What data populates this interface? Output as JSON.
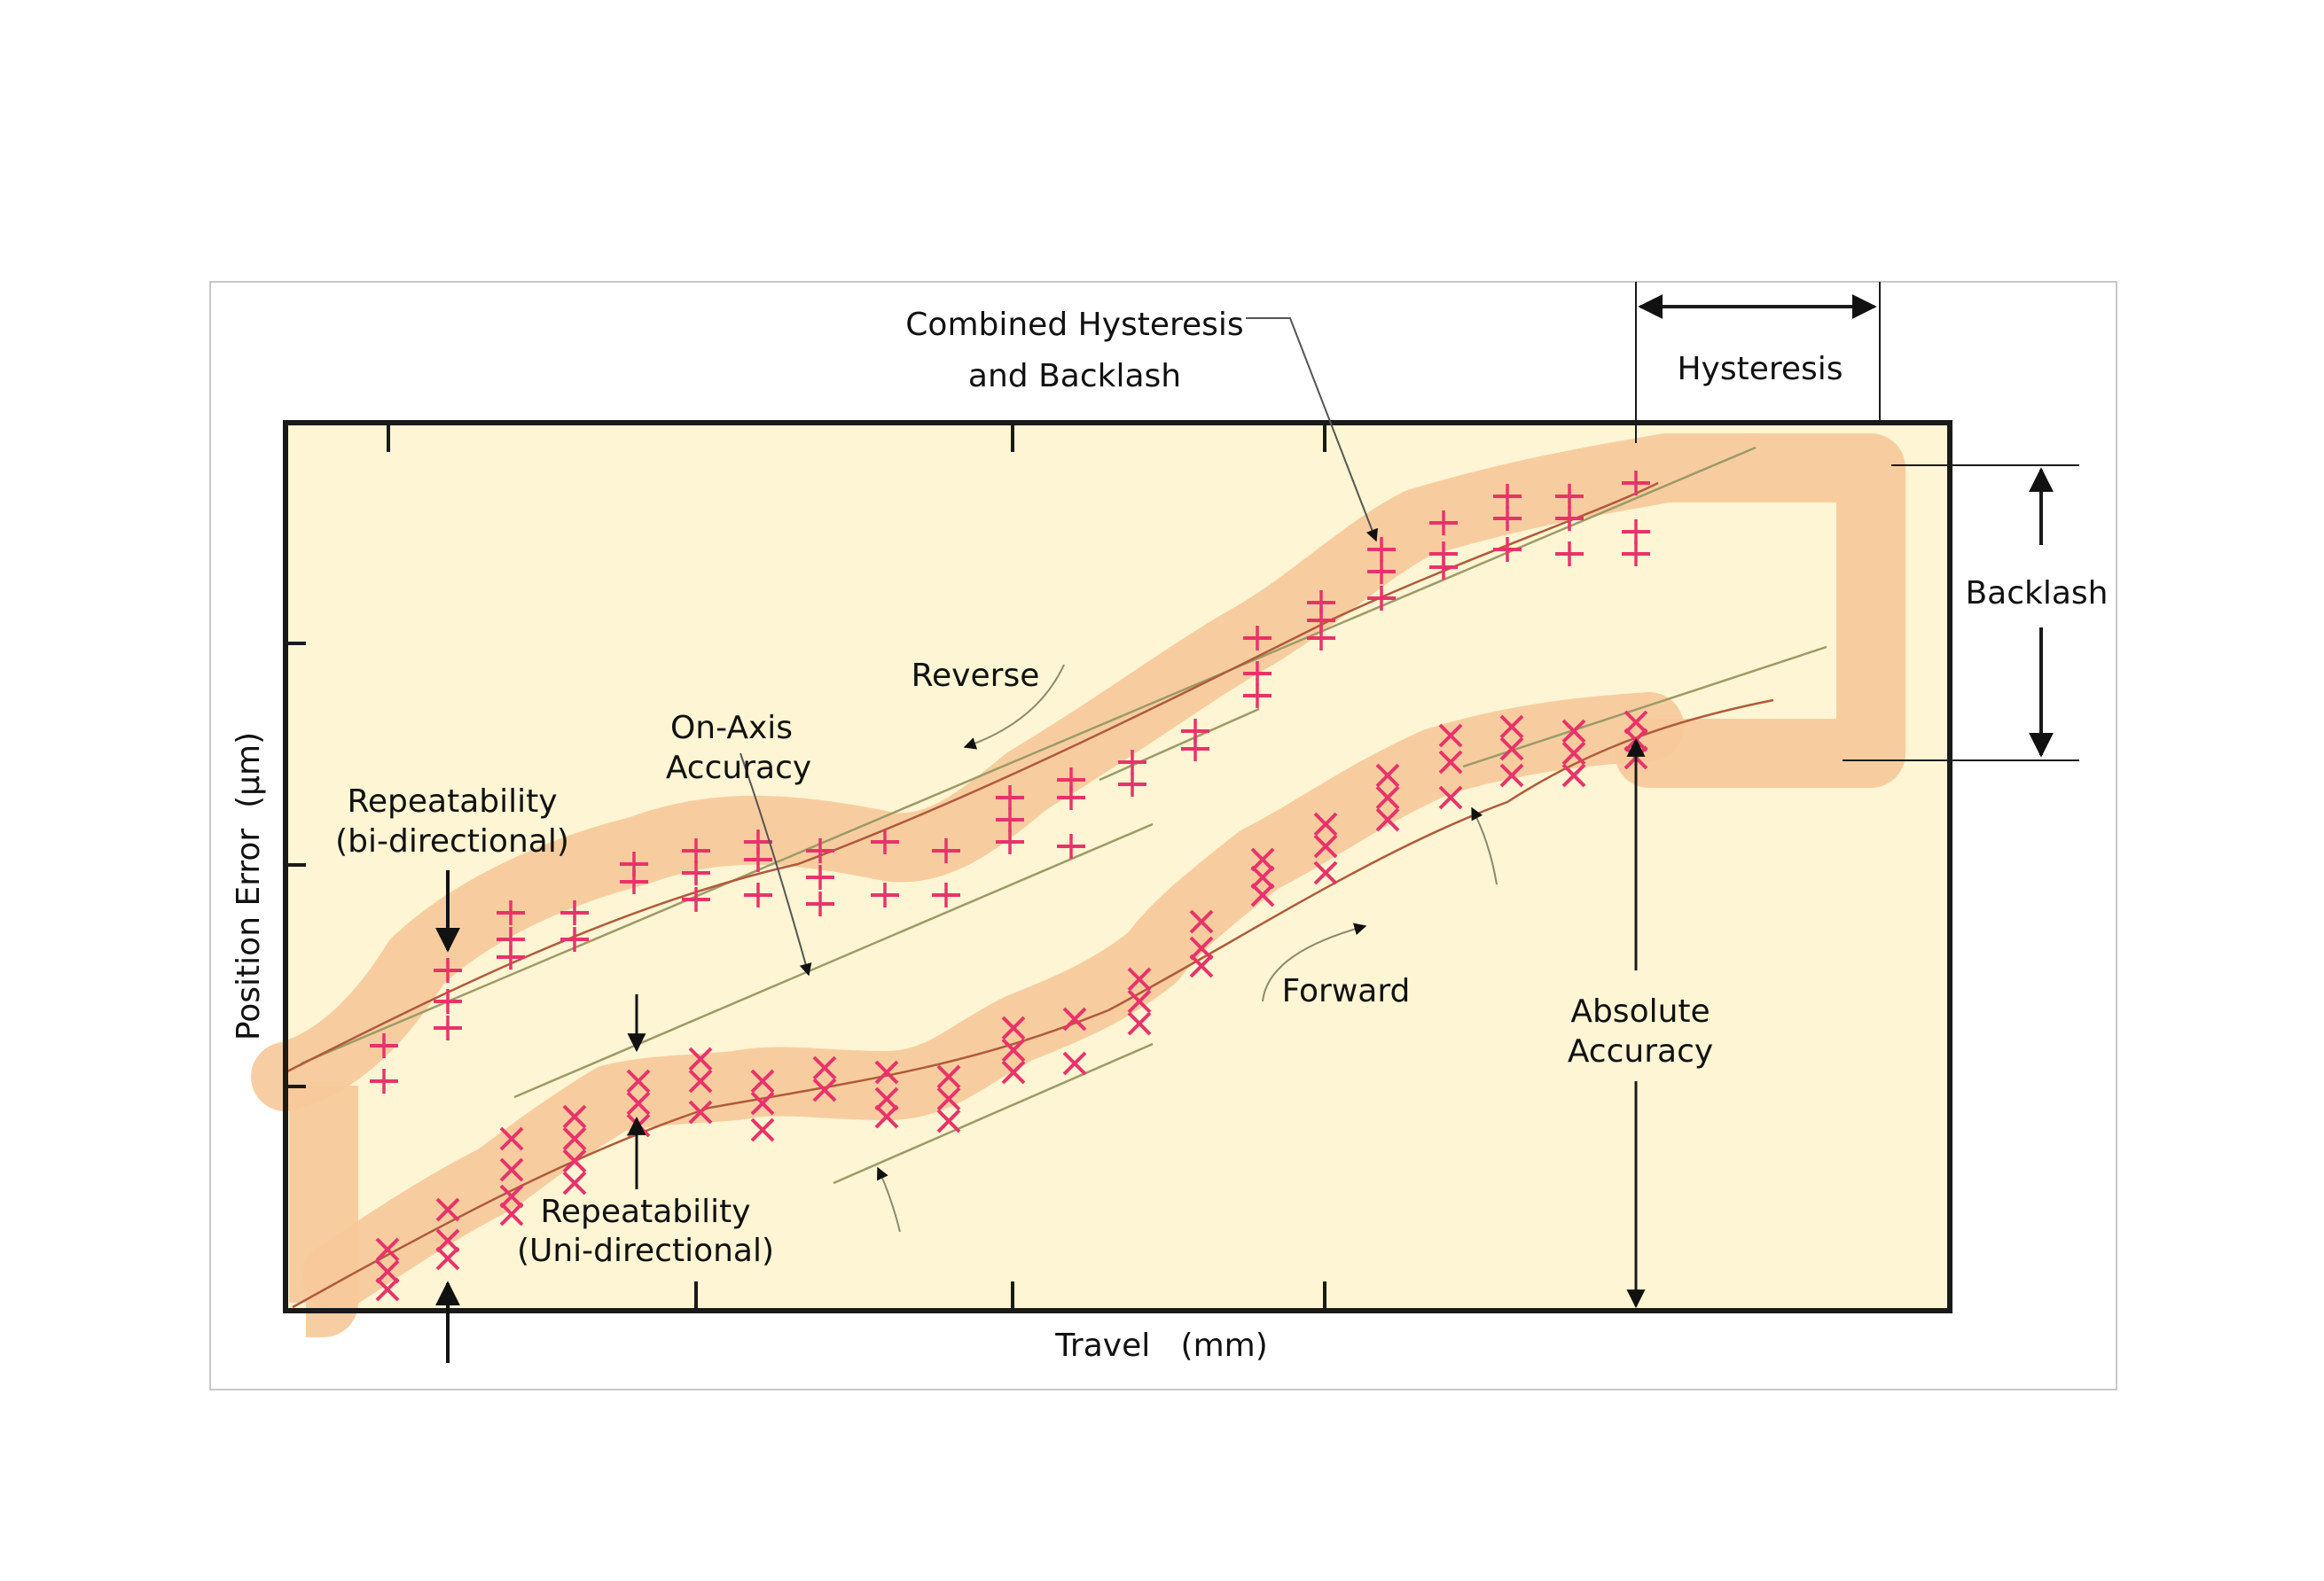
{
  "axes": {
    "x_label": "Travel   (mm)",
    "y_label": "Position Error  (μm)"
  },
  "annotations": {
    "combined_line1": "Combined Hysteresis",
    "combined_line2": "and Backlash",
    "hysteresis": "Hysteresis",
    "backlash": "Backlash",
    "reverse": "Reverse",
    "forward": "Forward",
    "on_axis_line1": "On-Axis",
    "on_axis_line2": "Accuracy",
    "rep_bi_line1": "Repeatability",
    "rep_bi_line2": "(bi-directional)",
    "rep_uni_line1": "Repeatability",
    "rep_uni_line2": "(Uni-directional)",
    "abs_line1": "Absolute",
    "abs_line2": "Accuracy"
  },
  "colors": {
    "plot_background": "#fdf5d3",
    "band": "#f6c99a",
    "marker": "#e8336a",
    "trend_line": "#b05a3a",
    "frame": "#1a1a1a",
    "guide_line": "#9c9a68"
  },
  "markers": {
    "reverse_symbol": "plus",
    "forward_symbol": "cross"
  }
}
